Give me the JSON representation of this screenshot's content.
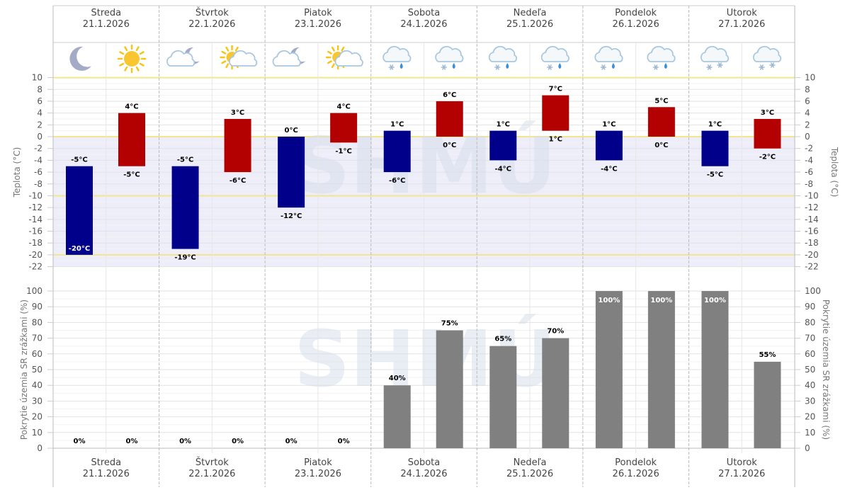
{
  "days": [
    {
      "name": "Streda",
      "date": "21.1.2026",
      "icons": [
        "moon",
        "sun"
      ]
    },
    {
      "name": "Štvrtok",
      "date": "22.1.2026",
      "icons": [
        "cloud-moon",
        "sun-cloud"
      ]
    },
    {
      "name": "Piatok",
      "date": "23.1.2026",
      "icons": [
        "cloud-moon",
        "sun-cloud"
      ]
    },
    {
      "name": "Sobota",
      "date": "24.1.2026",
      "icons": [
        "rain-snow",
        "rain-snow"
      ]
    },
    {
      "name": "Nedeľa",
      "date": "25.1.2026",
      "icons": [
        "rain-snow",
        "rain-snow"
      ]
    },
    {
      "name": "Pondelok",
      "date": "26.1.2026",
      "icons": [
        "rain-snow",
        "rain-snow"
      ]
    },
    {
      "name": "Utorok",
      "date": "27.1.2026",
      "icons": [
        "snow",
        "snow"
      ]
    }
  ],
  "watermark": "SHMÚ",
  "colors": {
    "night": "#00008b",
    "day": "#b30000",
    "precip": "#808080",
    "highlight": "#f0e68c",
    "below_zero": "#eeeefa"
  },
  "chart_data": [
    {
      "type": "bar",
      "title": "",
      "ylabel": "Teplota (°C)",
      "ylim": [
        -22,
        10
      ],
      "yticks": [
        "10",
        "8",
        "6",
        "4",
        "2",
        "0",
        "-2",
        "-4",
        "-6",
        "-8",
        "-10",
        "-12",
        "-14",
        "-16",
        "-18",
        "-20",
        "-22"
      ],
      "series": [
        {
          "name": "night",
          "ranges": [
            [
              -20,
              -5
            ],
            [
              -19,
              -5
            ],
            [
              -12,
              0
            ],
            [
              -6,
              1
            ],
            [
              -4,
              1
            ],
            [
              -4,
              1
            ],
            [
              -5,
              1
            ]
          ]
        },
        {
          "name": "day",
          "ranges": [
            [
              -5,
              4
            ],
            [
              -6,
              3
            ],
            [
              -1,
              4
            ],
            [
              0,
              6
            ],
            [
              1,
              7
            ],
            [
              0,
              5
            ],
            [
              -2,
              3
            ]
          ]
        }
      ]
    },
    {
      "type": "bar",
      "title": "",
      "ylabel": "Pokrytie územia SR zrážkami (%)",
      "ylim": [
        0,
        100
      ],
      "yticks": [
        "100",
        "90",
        "80",
        "70",
        "60",
        "50",
        "40",
        "30",
        "20",
        "10",
        "0"
      ],
      "values": [
        0,
        0,
        0,
        0,
        0,
        0,
        40,
        75,
        65,
        70,
        100,
        100,
        100,
        55
      ]
    }
  ]
}
